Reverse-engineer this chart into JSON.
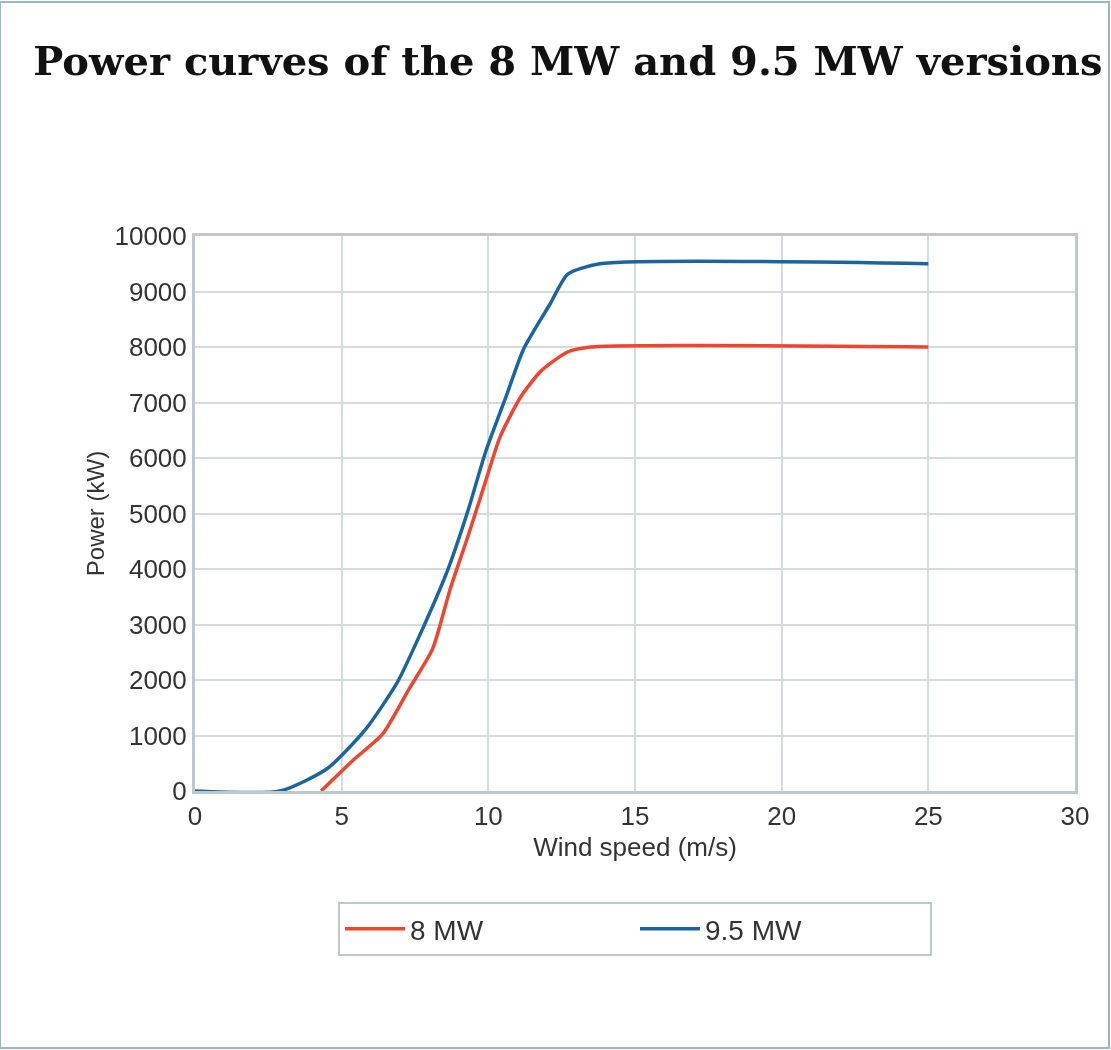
{
  "chart_data": {
    "type": "line",
    "title": "Power curves of the 8 MW and 9.5 MW versions",
    "xlabel": "Wind speed (m/s)",
    "ylabel": "Power (kW)",
    "xlim": [
      0,
      30
    ],
    "xticks": [
      0,
      5,
      10,
      15,
      20,
      25,
      30
    ],
    "ylim": [
      0,
      10000
    ],
    "yticks": [
      0,
      1000,
      2000,
      3000,
      4000,
      5000,
      6000,
      7000,
      8000,
      9000,
      10000
    ],
    "grid": true,
    "legend": "bottom",
    "line_style": "solid",
    "marker": "none",
    "series": [
      {
        "name": "8 MW",
        "color": "#f0442c",
        "x": [
          4.3,
          5.4,
          6.4,
          7.3,
          8.1,
          8.7,
          9.3,
          9.9,
          10.4,
          11.1,
          11.8,
          12.7,
          13.5,
          25
        ],
        "values": [
          0,
          560,
          1030,
          1840,
          2560,
          3640,
          4580,
          5570,
          6380,
          7100,
          7570,
          7910,
          8000,
          8000
        ]
      },
      {
        "name": "9.5 MW",
        "color": "#1a64a0",
        "x": [
          0,
          2.9,
          4.5,
          5.8,
          6.9,
          7.8,
          8.6,
          9.3,
          9.9,
          10.6,
          11.2,
          12.1,
          12.7,
          13.8,
          25
        ],
        "values": [
          0,
          0,
          400,
          1100,
          1960,
          2970,
          3960,
          5040,
          6100,
          7100,
          7960,
          8770,
          9310,
          9500,
          9500
        ]
      }
    ]
  }
}
